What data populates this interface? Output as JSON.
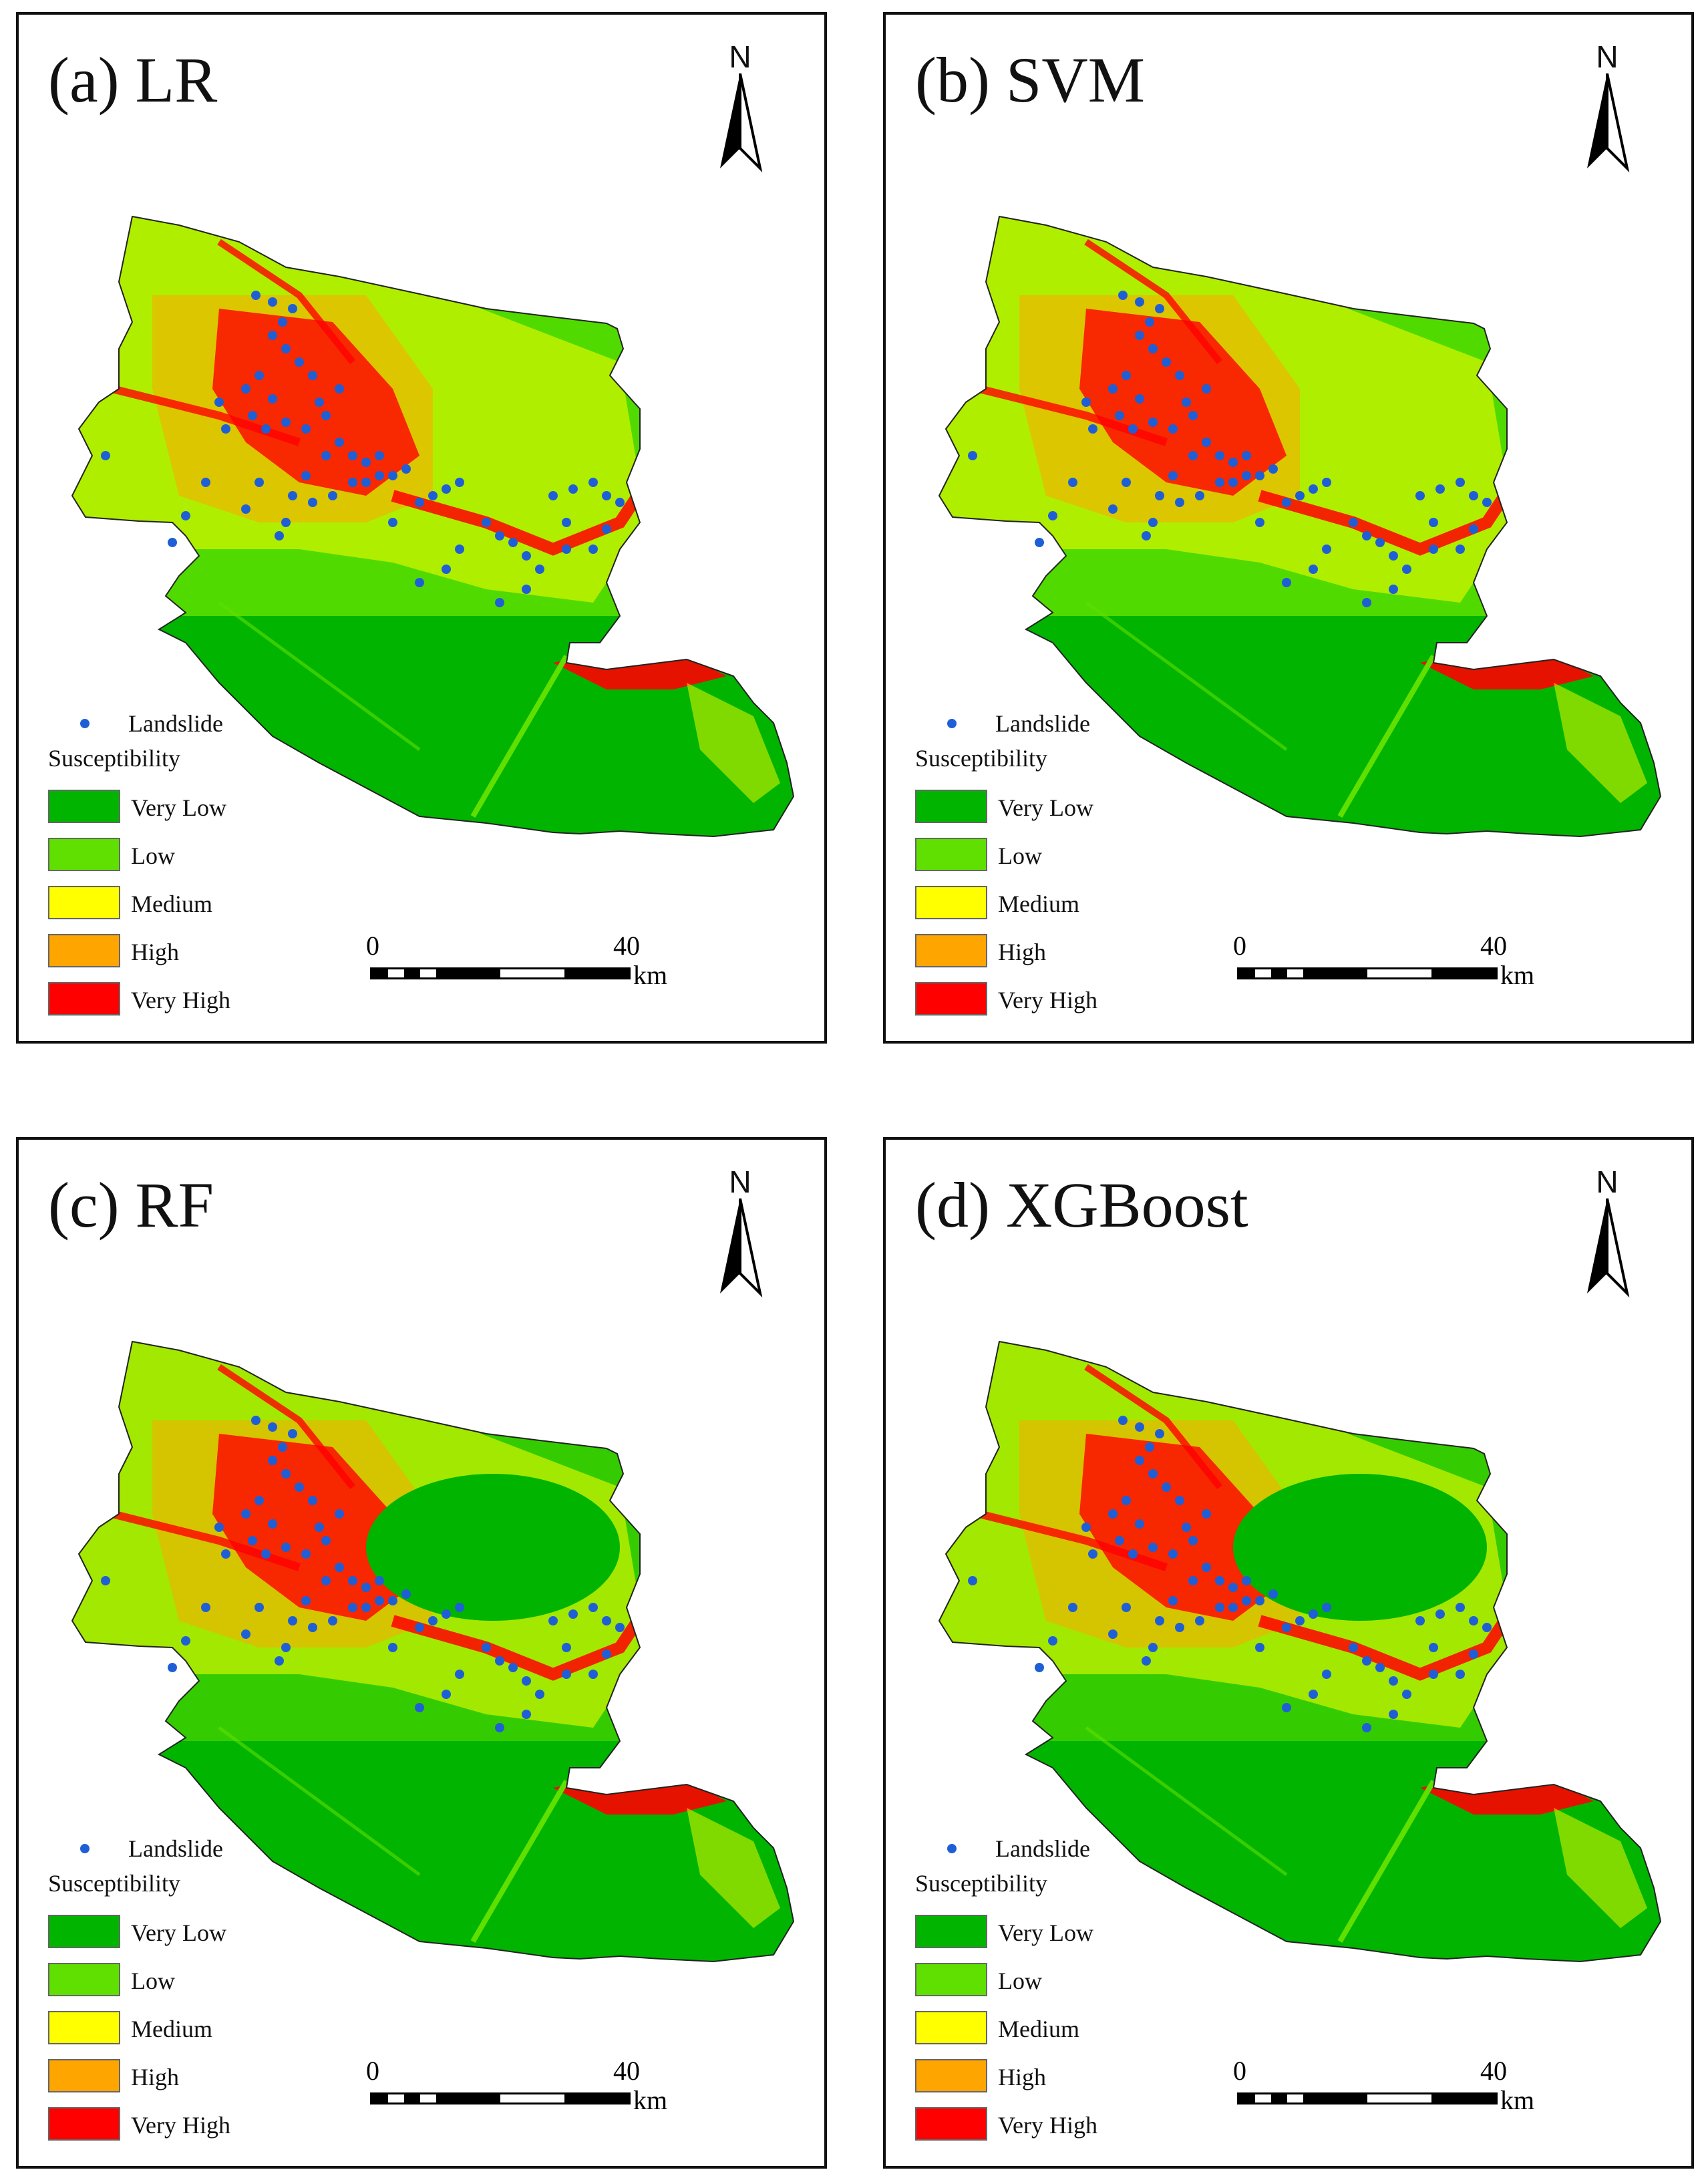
{
  "figure": {
    "colors": {
      "very_low": "#00b400",
      "low": "#5fe000",
      "medium": "#ffff00",
      "high": "#ffa500",
      "very_high": "#ff0000",
      "landslide": "#1f5fd6"
    },
    "north_label": "N",
    "legend": {
      "landslide_label": "Landslide",
      "heading": "Susceptibility",
      "classes": [
        {
          "label": "Very Low",
          "color": "#00b400"
        },
        {
          "label": "Low",
          "color": "#5fe000"
        },
        {
          "label": "Medium",
          "color": "#ffff00"
        },
        {
          "label": "High",
          "color": "#ffa500"
        },
        {
          "label": "Very High",
          "color": "#ff0000"
        }
      ]
    },
    "scale_bar": {
      "start": "0",
      "end": "40",
      "unit": "km"
    }
  },
  "panels": [
    {
      "id": "a",
      "title": "(a) LR"
    },
    {
      "id": "b",
      "title": "(b) SVM"
    },
    {
      "id": "c",
      "title": "(c) RF"
    },
    {
      "id": "d",
      "title": "(d) XGBoost"
    }
  ]
}
